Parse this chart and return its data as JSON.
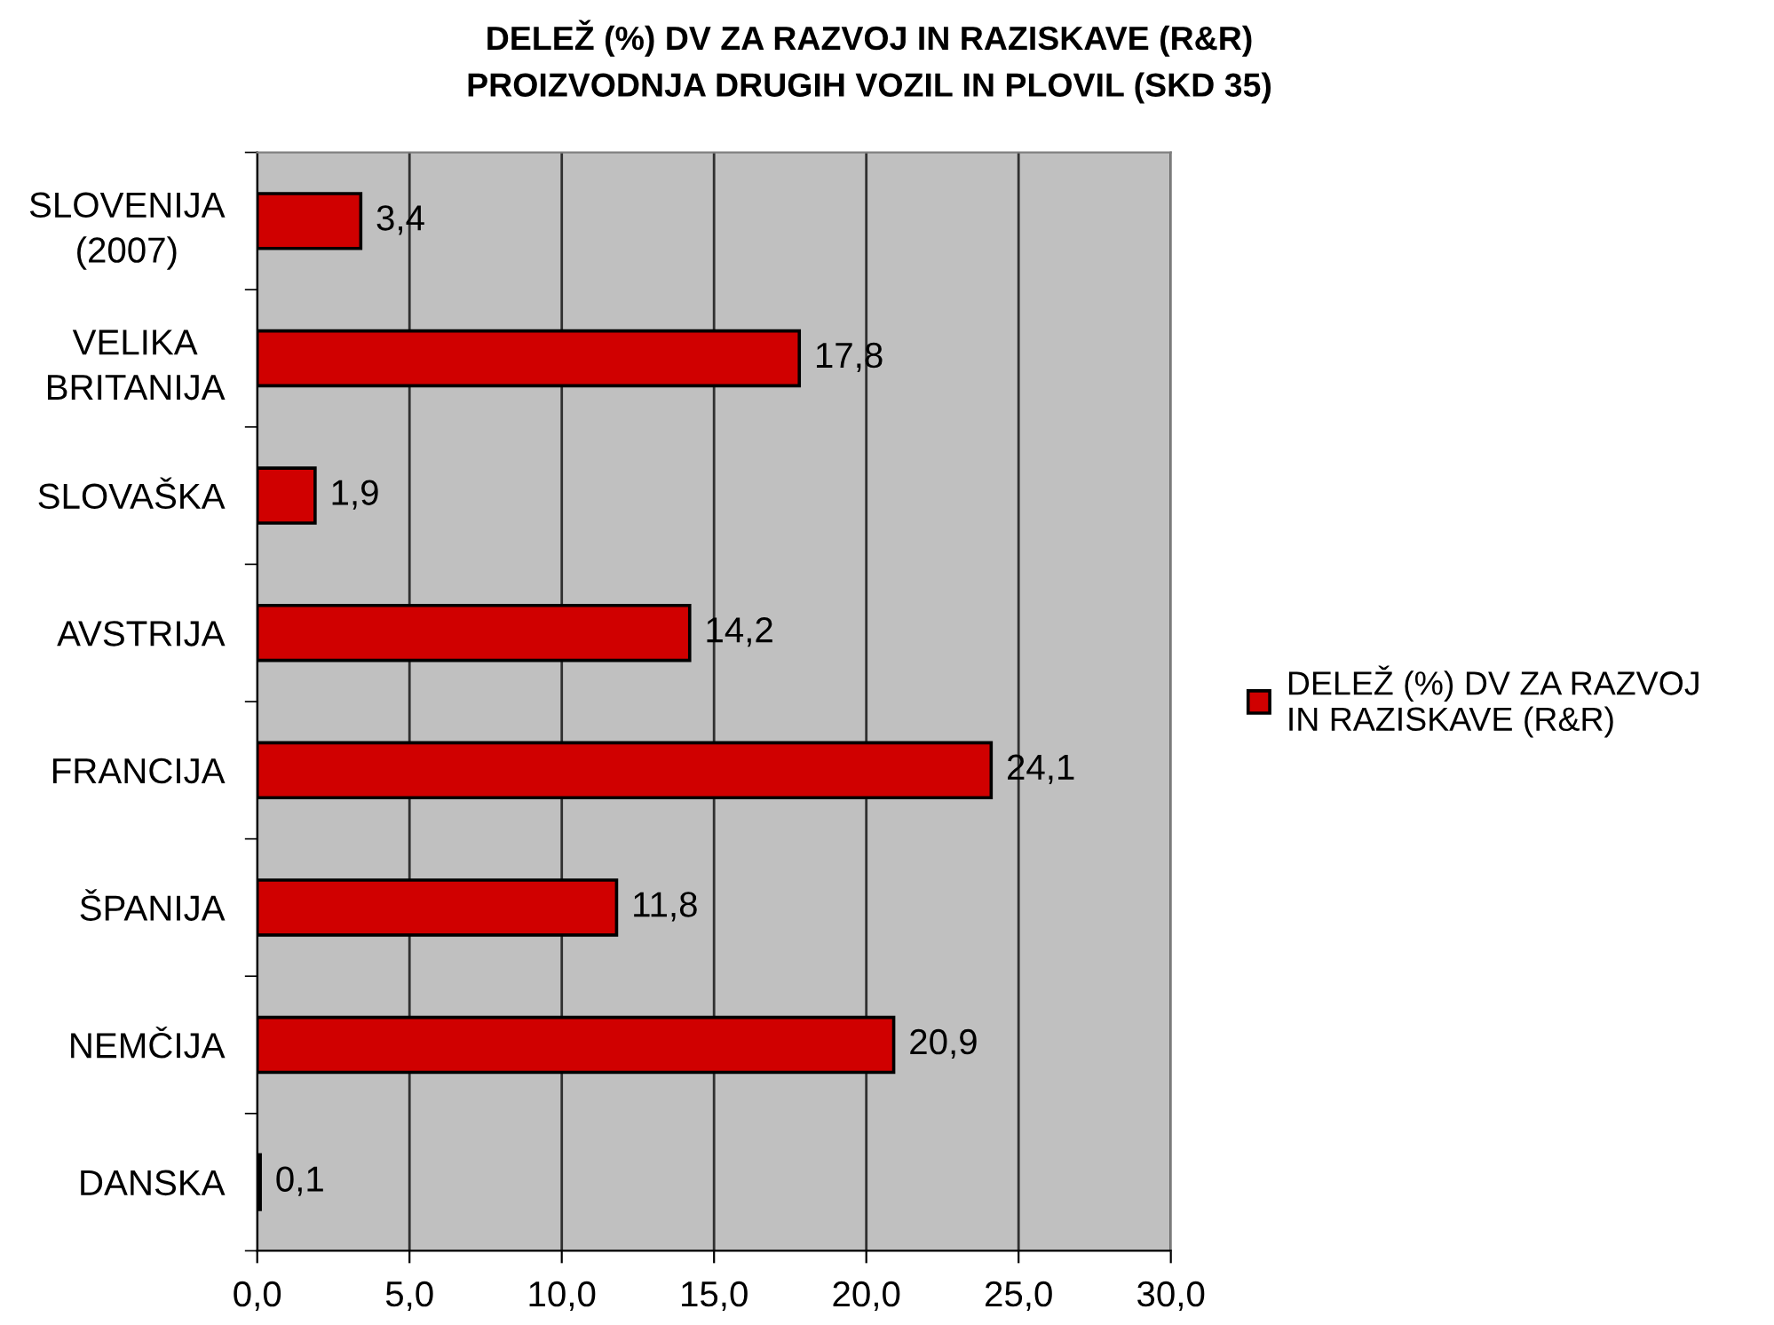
{
  "chart_data": {
    "type": "bar",
    "orientation": "horizontal",
    "title": "DELEŽ (%) DV ZA RAZVOJ IN RAZISKAVE (R&R)\nPROIZVODNJA DRUGIH VOZIL IN PLOVIL (SKD 35)",
    "categories": [
      "SLOVENIJA\n(2007)",
      "VELIKA\nBRITANIJA",
      "SLOVAŠKA",
      "AVSTRIJA",
      "FRANCIJA",
      "ŠPANIJA",
      "NEMČIJA",
      "DANSKA"
    ],
    "series": [
      {
        "name": "DELEŽ (%) DV ZA RAZVOJ\nIN RAZISKAVE (R&R)",
        "color": "#d00000",
        "values": [
          3.4,
          17.8,
          1.9,
          14.2,
          24.1,
          11.8,
          20.9,
          0.1
        ],
        "value_labels": [
          "3,4",
          "17,8",
          "1,9",
          "14,2",
          "24,1",
          "11,8",
          "20,9",
          "0,1"
        ]
      }
    ],
    "xlim": [
      0,
      30
    ],
    "xticks": [
      {
        "value": 0,
        "label": "0,0"
      },
      {
        "value": 5,
        "label": "5,0"
      },
      {
        "value": 10,
        "label": "10,0"
      },
      {
        "value": 15,
        "label": "15,0"
      },
      {
        "value": 20,
        "label": "20,0"
      },
      {
        "value": 25,
        "label": "25,0"
      },
      {
        "value": 30,
        "label": "30,0"
      }
    ],
    "grid": "x",
    "legend": "right"
  }
}
